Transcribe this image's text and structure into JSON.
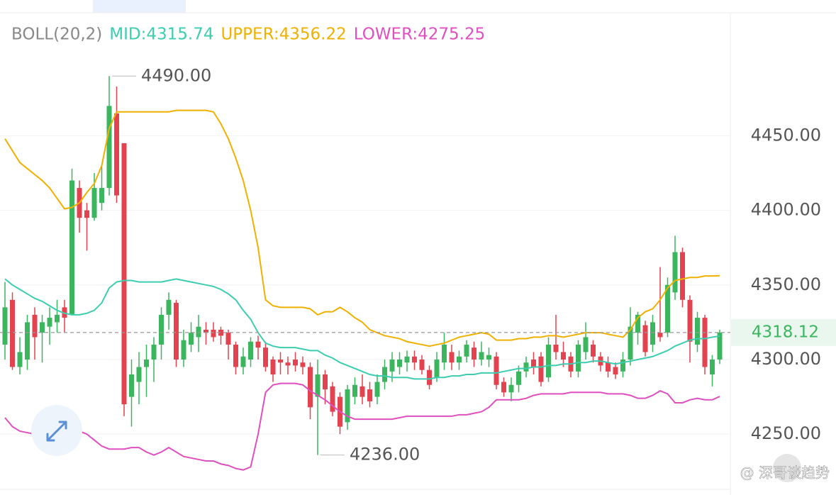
{
  "chart_data": {
    "type": "candlestick",
    "indicator": "BOLL(20,2)",
    "up_color": "#3bb55e",
    "down_color": "#e2434f",
    "open": [
      4310,
      4340,
      4295,
      4300,
      4330,
      4318,
      4322,
      4325,
      4335,
      4330,
      4415,
      4400,
      4395,
      4405,
      4415,
      4465,
      4445,
      4275,
      4285,
      4295,
      4300,
      4310,
      4330,
      4338,
      4300,
      4310,
      4315,
      4320,
      4320,
      4320,
      4318,
      4310,
      4295,
      4300,
      4312,
      4308,
      4300,
      4300,
      4298,
      4300,
      4298,
      4295,
      4275,
      4290,
      4282,
      4275,
      4258,
      4275,
      4282,
      4280,
      4275,
      4285,
      4292,
      4295,
      4298,
      4302,
      4300,
      4293,
      4288,
      4298,
      4305,
      4298,
      4302,
      4308,
      4300,
      4300,
      4302,
      4285,
      4278,
      4283,
      4292,
      4300,
      4302,
      4288,
      4310,
      4305,
      4302,
      4292,
      4305,
      4310,
      4302,
      4298,
      4295,
      4292,
      4300,
      4318,
      4323,
      4310,
      4318,
      4318,
      4345,
      4372,
      4340,
      4310,
      4328,
      4290,
      4300
    ],
    "high": [
      4352,
      4345,
      4315,
      4330,
      4335,
      4330,
      4335,
      4340,
      4340,
      4428,
      4420,
      4405,
      4425,
      4430,
      4490,
      4483,
      4445,
      4300,
      4305,
      4310,
      4315,
      4335,
      4345,
      4340,
      4320,
      4325,
      4330,
      4325,
      4325,
      4322,
      4320,
      4312,
      4308,
      4315,
      4316,
      4312,
      4302,
      4305,
      4302,
      4305,
      4302,
      4298,
      4300,
      4293,
      4285,
      4278,
      4283,
      4288,
      4290,
      4285,
      4290,
      4300,
      4305,
      4305,
      4306,
      4306,
      4303,
      4296,
      4305,
      4318,
      4310,
      4306,
      4313,
      4312,
      4312,
      4308,
      4305,
      4288,
      4288,
      4296,
      4302,
      4305,
      4305,
      4315,
      4330,
      4312,
      4305,
      4313,
      4325,
      4313,
      4305,
      4302,
      4298,
      4305,
      4335,
      4332,
      4326,
      4330,
      4362,
      4355,
      4383,
      4375,
      4343,
      4332,
      4330,
      4303,
      4320
    ],
    "low": [
      4300,
      4293,
      4290,
      4293,
      4300,
      4298,
      4310,
      4318,
      4318,
      4330,
      4385,
      4373,
      4393,
      4400,
      4410,
      4405,
      4262,
      4255,
      4270,
      4275,
      4285,
      4300,
      4320,
      4295,
      4295,
      4305,
      4305,
      4310,
      4312,
      4310,
      4300,
      4290,
      4290,
      4295,
      4300,
      4292,
      4285,
      4290,
      4290,
      4292,
      4290,
      4260,
      4236,
      4270,
      4262,
      4250,
      4253,
      4270,
      4270,
      4268,
      4270,
      4280,
      4285,
      4290,
      4292,
      4293,
      4290,
      4280,
      4285,
      4293,
      4293,
      4293,
      4298,
      4295,
      4296,
      4295,
      4280,
      4275,
      4272,
      4278,
      4288,
      4290,
      4282,
      4285,
      4300,
      4295,
      4288,
      4288,
      4300,
      4298,
      4292,
      4288,
      4287,
      4288,
      4296,
      4310,
      4302,
      4305,
      4312,
      4315,
      4340,
      4335,
      4298,
      4305,
      4290,
      4282,
      4297
    ],
    "close": [
      4335,
      4295,
      4305,
      4325,
      4315,
      4325,
      4328,
      4330,
      4328,
      4420,
      4395,
      4395,
      4415,
      4415,
      4470,
      4410,
      4270,
      4290,
      4295,
      4300,
      4310,
      4330,
      4340,
      4300,
      4313,
      4318,
      4322,
      4318,
      4315,
      4316,
      4310,
      4295,
      4302,
      4312,
      4308,
      4295,
      4290,
      4298,
      4296,
      4296,
      4295,
      4268,
      4290,
      4280,
      4265,
      4255,
      4280,
      4283,
      4275,
      4272,
      4285,
      4295,
      4300,
      4300,
      4302,
      4298,
      4293,
      4283,
      4300,
      4310,
      4298,
      4302,
      4310,
      4300,
      4305,
      4303,
      4283,
      4278,
      4283,
      4292,
      4298,
      4295,
      4285,
      4310,
      4305,
      4300,
      4292,
      4310,
      4315,
      4302,
      4296,
      4292,
      4290,
      4300,
      4322,
      4330,
      4305,
      4325,
      4315,
      4350,
      4372,
      4340,
      4312,
      4328,
      4295,
      4300,
      4318.12
    ],
    "series": [
      {
        "name": "MID:4315.74",
        "color": "#3ccdb0",
        "values": [
          4354,
          4350,
          4347,
          4344,
          4341,
          4339,
          4336,
          4333,
          4331,
          4330,
          4330,
          4331,
          4333,
          4338,
          4348,
          4352,
          4353,
          4353,
          4352,
          4352,
          4352,
          4352,
          4353,
          4354,
          4353,
          4352,
          4351,
          4350,
          4349,
          4347,
          4344,
          4340,
          4333,
          4327,
          4318,
          4311,
          4309,
          4308,
          4308,
          4308,
          4307,
          4306,
          4306,
          4303,
          4301,
          4298,
          4296,
          4294,
          4292,
          4290,
          4289,
          4289,
          4288,
          4288,
          4288,
          4287,
          4287,
          4287,
          4288,
          4288,
          4289,
          4289,
          4290,
          4290,
          4291,
          4291,
          4291,
          4292,
          4293,
          4294,
          4294,
          4295,
          4295,
          4296,
          4296,
          4297,
          4297,
          4298,
          4298,
          4299,
          4299,
          4298,
          4297,
          4298,
          4299,
          4300,
          4301,
          4302,
          4304,
          4306,
          4309,
          4311,
          4313,
          4314,
          4314,
          4315,
          4315.74
        ]
      },
      {
        "name": "UPPER:4356.22",
        "color": "#f0b000",
        "values": [
          4448,
          4440,
          4432,
          4428,
          4424,
          4420,
          4415,
          4408,
          4401,
          4402,
          4405,
          4412,
          4418,
          4430,
          4455,
          4466,
          4466,
          4466,
          4466,
          4466,
          4466,
          4466,
          4466,
          4467,
          4467,
          4467,
          4467,
          4467,
          4466,
          4458,
          4448,
          4435,
          4420,
          4400,
          4375,
          4340,
          4336,
          4335,
          4335,
          4335,
          4335,
          4334,
          4330,
          4332,
          4332,
          4335,
          4332,
          4328,
          4325,
          4320,
          4318,
          4316,
          4315,
          4314,
          4312,
          4311,
          4310,
          4309,
          4310,
          4311,
          4313,
          4315,
          4316,
          4317,
          4318,
          4317,
          4313,
          4313,
          4313,
          4314,
          4314,
          4315,
          4315,
          4316,
          4316,
          4315,
          4316,
          4317,
          4318,
          4318,
          4318,
          4317,
          4316,
          4315,
          4320,
          4328,
          4332,
          4334,
          4340,
          4348,
          4353,
          4354,
          4355,
          4355,
          4356,
          4356,
          4356.22
        ]
      },
      {
        "name": "LOWER:4275.25",
        "color": "#e04fbf",
        "values": [
          4261,
          4255,
          4252,
          4251,
          4250,
          4249,
          4250,
          4252,
          4253,
          4253,
          4252,
          4250,
          4246,
          4242,
          4240,
          4240,
          4240,
          4241,
          4241,
          4238,
          4236,
          4238,
          4241,
          4238,
          4235,
          4234,
          4233,
          4232,
          4232,
          4230,
          4229,
          4227,
          4226,
          4228,
          4250,
          4278,
          4283,
          4284,
          4284,
          4284,
          4283,
          4279,
          4276,
          4273,
          4269,
          4265,
          4262,
          4260,
          4260,
          4260,
          4260,
          4260,
          4260,
          4261,
          4262,
          4262,
          4262,
          4262,
          4262,
          4262,
          4262,
          4263,
          4263,
          4264,
          4265,
          4268,
          4273,
          4273,
          4273,
          4273,
          4274,
          4276,
          4277,
          4277,
          4277,
          4277,
          4278,
          4278,
          4278,
          4278,
          4278,
          4277,
          4277,
          4277,
          4276,
          4274,
          4274,
          4276,
          4279,
          4277,
          4271,
          4271,
          4273,
          4274,
          4273,
          4273,
          4275.25
        ]
      }
    ],
    "ylim": [
      4213,
      4541
    ],
    "yticks": [
      {
        "value": 4250,
        "label": "4250.00"
      },
      {
        "value": 4300,
        "label": "4300.00"
      },
      {
        "value": 4350,
        "label": "4350.00"
      },
      {
        "value": 4400,
        "label": "4400.00"
      },
      {
        "value": 4450,
        "label": "4450.00"
      }
    ],
    "grid": true,
    "last_price": {
      "value": 4318.12,
      "label": "4318.12"
    },
    "annotations": [
      {
        "index": 14,
        "value": 4490,
        "label": "4490.00"
      },
      {
        "index": 42,
        "value": 4236,
        "label": "4236.00"
      }
    ],
    "watermark": "@ 深哥谈趋势"
  }
}
